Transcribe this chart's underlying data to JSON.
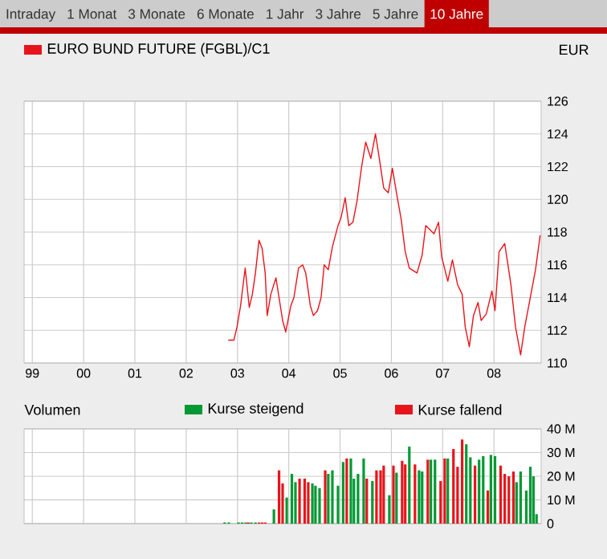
{
  "chart_data": [
    {
      "type": "line",
      "ylabel": "EUR",
      "annotations": [
        "Intraday",
        "1 Monat",
        "3 Monate",
        "6 Monate",
        "1 Jahr",
        "3 Jahre",
        "5 Jahre",
        "10 Jahre"
      ],
      "x": [
        2002.82,
        2002.93,
        2002.99,
        2003.06,
        2003.15,
        2003.23,
        2003.29,
        2003.35,
        2003.42,
        2003.48,
        2003.54,
        2003.58,
        2003.65,
        2003.75,
        2003.81,
        2003.88,
        2003.94,
        2004.04,
        2004.1,
        2004.19,
        2004.27,
        2004.33,
        2004.42,
        2004.48,
        2004.56,
        2004.63,
        2004.69,
        2004.77,
        2004.85,
        2004.96,
        2005.02,
        2005.1,
        2005.17,
        2005.25,
        2005.33,
        2005.42,
        2005.5,
        2005.6,
        2005.69,
        2005.77,
        2005.85,
        2005.94,
        2006.02,
        2006.1,
        2006.19,
        2006.27,
        2006.35,
        2006.5,
        2006.6,
        2006.67,
        2006.83,
        2006.92,
        2006.98,
        2007.1,
        2007.19,
        2007.29,
        2007.38,
        2007.44,
        2007.52,
        2007.6,
        2007.69,
        2007.75,
        2007.85,
        2007.96,
        2008.02,
        2008.1,
        2008.21,
        2008.33,
        2008.42,
        2008.52,
        2008.6,
        2008.69,
        2008.81,
        2008.9
      ],
      "series": [
        {
          "name": "EURO BUND FUTURE (FGBL)/C1",
          "color": "#e8141b",
          "values": [
            111.4,
            111.4,
            112.2,
            113.5,
            115.8,
            113.4,
            114.2,
            115.5,
            117.5,
            117.0,
            115.5,
            112.9,
            114.2,
            115.2,
            114.0,
            112.6,
            111.9,
            113.5,
            114.0,
            115.8,
            116.0,
            115.5,
            113.5,
            112.9,
            113.2,
            114.0,
            116.0,
            115.7,
            117.1,
            118.4,
            118.9,
            120.1,
            118.4,
            118.6,
            119.9,
            122.0,
            123.5,
            122.5,
            124.0,
            122.4,
            120.7,
            120.4,
            121.9,
            120.4,
            118.8,
            116.8,
            115.8,
            115.5,
            116.6,
            118.4,
            117.9,
            118.6,
            116.5,
            115.0,
            116.3,
            114.8,
            114.2,
            112.2,
            111.0,
            112.9,
            113.7,
            112.6,
            113.0,
            114.4,
            113.2,
            116.8,
            117.3,
            114.8,
            112.2,
            110.5,
            112.2,
            113.7,
            115.7,
            117.8
          ]
        }
      ],
      "xlim": [
        1998.84,
        2008.92
      ],
      "xticks": [
        {
          "value": 1999,
          "label": "99"
        },
        {
          "value": 2000,
          "label": "00"
        },
        {
          "value": 2001,
          "label": "01"
        },
        {
          "value": 2002,
          "label": "02"
        },
        {
          "value": 2003,
          "label": "03"
        },
        {
          "value": 2004,
          "label": "04"
        },
        {
          "value": 2005,
          "label": "05"
        },
        {
          "value": 2006,
          "label": "06"
        },
        {
          "value": 2007,
          "label": "07"
        },
        {
          "value": 2008,
          "label": "08"
        }
      ],
      "ylim": [
        110,
        126
      ],
      "yticks": [
        110,
        112,
        114,
        116,
        118,
        120,
        122,
        124,
        126
      ],
      "grid": true,
      "legend": "top left"
    },
    {
      "type": "bar",
      "title": "Volumen",
      "series": [
        {
          "name": "Kurse steigend",
          "color": "#009933",
          "x": [
            2002.75,
            2002.83,
            2003.02,
            2003.09,
            2003.16,
            2003.27,
            2003.35,
            2003.71,
            2003.96,
            2004.06,
            2004.13,
            2004.46,
            2004.52,
            2004.6,
            2004.77,
            2004.85,
            2004.96,
            2005.06,
            2005.21,
            2005.27,
            2005.35,
            2005.46,
            2005.63,
            2005.96,
            2006.1,
            2006.35,
            2006.54,
            2006.6,
            2006.77,
            2006.85,
            2007.1,
            2007.46,
            2007.54,
            2007.71,
            2007.79,
            2007.94,
            2008.02,
            2008.44,
            2008.52,
            2008.63,
            2008.71,
            2008.77,
            2008.83
          ],
          "values": [
            0.5,
            0.5,
            0.5,
            0.5,
            0.5,
            0.5,
            0.5,
            6,
            11,
            21,
            17.5,
            17,
            16,
            15,
            21,
            22.5,
            16,
            26,
            27.5,
            19,
            21,
            27.5,
            18,
            12,
            21.5,
            32.5,
            22.5,
            22,
            27,
            27,
            27.5,
            33.5,
            28,
            27,
            28.5,
            29,
            28.5,
            17.5,
            22,
            14,
            24,
            20,
            4
          ]
        },
        {
          "name": "Kurse fallend",
          "color": "#e8141b",
          "x": [
            2003.21,
            2003.42,
            2003.48,
            2003.54,
            2003.81,
            2003.88,
            2004.21,
            2004.31,
            2004.38,
            2004.71,
            2005.13,
            2005.52,
            2005.71,
            2005.79,
            2005.85,
            2006.04,
            2006.21,
            2006.27,
            2006.46,
            2006.71,
            2006.96,
            2007.04,
            2007.21,
            2007.29,
            2007.38,
            2007.63,
            2007.88,
            2008.13,
            2008.21,
            2008.29,
            2008.38
          ],
          "values": [
            0.5,
            0.5,
            0.5,
            0.5,
            22.5,
            17,
            19,
            19,
            17.5,
            22.5,
            27.5,
            19,
            22.5,
            22.5,
            24.5,
            24.5,
            26.5,
            25,
            25,
            27,
            18,
            27.5,
            31.5,
            24,
            35.5,
            24.5,
            14,
            24.5,
            21,
            20,
            22
          ]
        }
      ],
      "xlim": [
        1998.84,
        2008.92
      ],
      "xticks": [
        {
          "value": 1999,
          "label": null
        },
        {
          "value": 2000,
          "label": null
        },
        {
          "value": 2001,
          "label": null
        },
        {
          "value": 2002,
          "label": null
        },
        {
          "value": 2003,
          "label": null
        },
        {
          "value": 2004,
          "label": null
        },
        {
          "value": 2005,
          "label": null
        },
        {
          "value": 2006,
          "label": null
        },
        {
          "value": 2007,
          "label": null
        },
        {
          "value": 2008,
          "label": null
        }
      ],
      "ylim": [
        0,
        40
      ],
      "yticks": [
        0,
        {
          "value": 10,
          "label": "10 M"
        },
        {
          "value": 20,
          "label": "20 M"
        },
        {
          "value": 30,
          "label": "30 M"
        },
        {
          "value": 40,
          "label": "40 M"
        }
      ],
      "grid": true,
      "legend": "top",
      "tick_labels": "y"
    }
  ]
}
